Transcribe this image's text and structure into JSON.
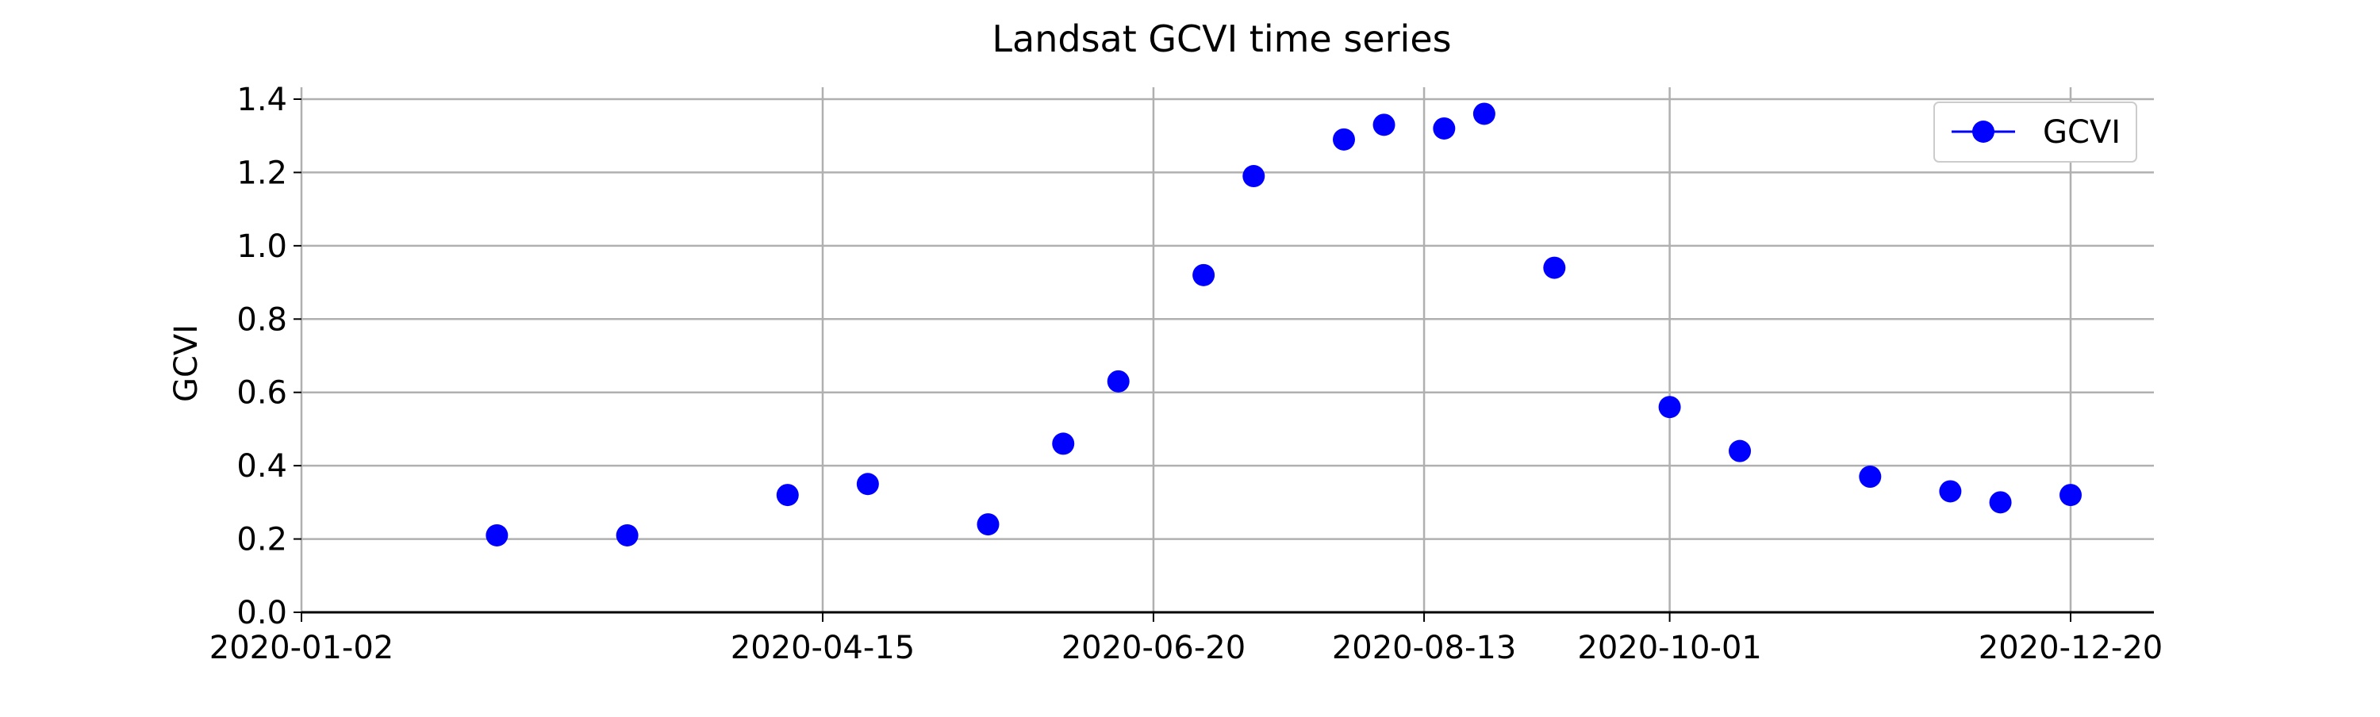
{
  "chart_data": {
    "type": "scatter",
    "title": "Landsat GCVI time series",
    "xlabel": "",
    "ylabel": "GCVI",
    "x_tick_labels": [
      "2020-01-02",
      "2020-04-15",
      "2020-06-20",
      "2020-08-13",
      "2020-10-01",
      "2020-12-20"
    ],
    "y_tick_labels": [
      "0.0",
      "0.2",
      "0.4",
      "0.6",
      "0.8",
      "1.0",
      "1.2",
      "1.4"
    ],
    "ylim": [
      0,
      1.4
    ],
    "grid": true,
    "legend_position": "top-right",
    "series": [
      {
        "name": "GCVI",
        "color": "#0000ff",
        "marker": "circle",
        "points": [
          {
            "x": "2020-02-10",
            "y": 0.21
          },
          {
            "x": "2020-03-07",
            "y": 0.21
          },
          {
            "x": "2020-04-08",
            "y": 0.32
          },
          {
            "x": "2020-04-24",
            "y": 0.35
          },
          {
            "x": "2020-05-18",
            "y": 0.24
          },
          {
            "x": "2020-06-02",
            "y": 0.46
          },
          {
            "x": "2020-06-13",
            "y": 0.63
          },
          {
            "x": "2020-06-30",
            "y": 0.92
          },
          {
            "x": "2020-07-10",
            "y": 1.19
          },
          {
            "x": "2020-07-28",
            "y": 1.29
          },
          {
            "x": "2020-08-05",
            "y": 1.33
          },
          {
            "x": "2020-08-17",
            "y": 1.32
          },
          {
            "x": "2020-08-25",
            "y": 1.36
          },
          {
            "x": "2020-09-08",
            "y": 0.94
          },
          {
            "x": "2020-10-01",
            "y": 0.56
          },
          {
            "x": "2020-10-15",
            "y": 0.44
          },
          {
            "x": "2020-11-10",
            "y": 0.37
          },
          {
            "x": "2020-11-26",
            "y": 0.33
          },
          {
            "x": "2020-12-06",
            "y": 0.3
          },
          {
            "x": "2020-12-20",
            "y": 0.32
          }
        ]
      }
    ]
  }
}
